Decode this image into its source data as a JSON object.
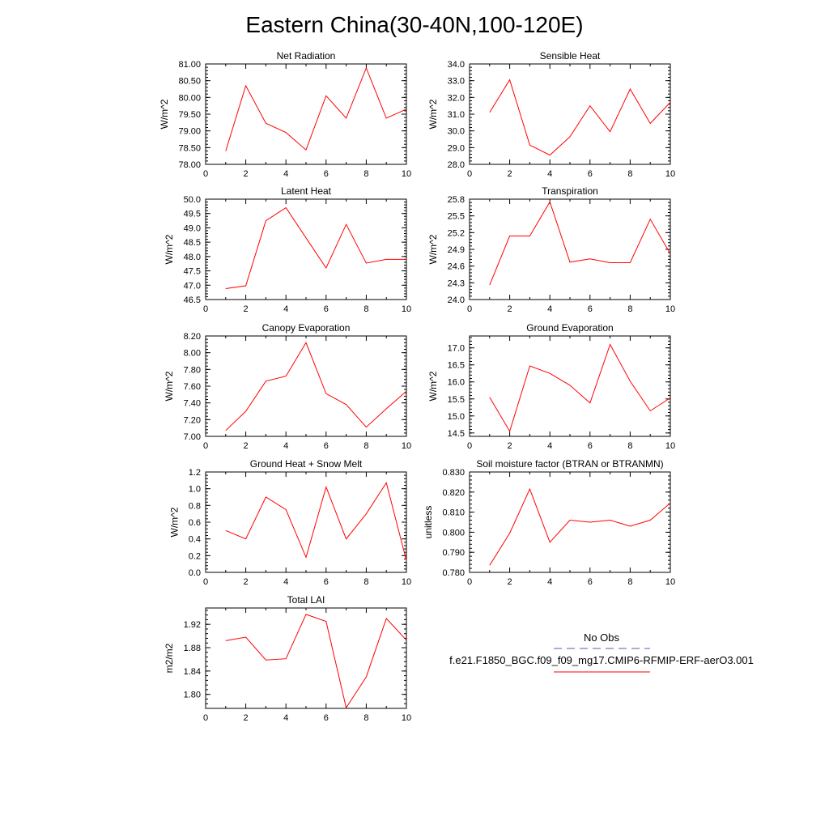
{
  "figure": {
    "title": "Eastern China(30-40N,100-120E)"
  },
  "legend": {
    "obs_label": "No Obs",
    "obs_color": "#5a5aa8",
    "model_label": "f.e21.F1850_BGC.f09_f09_mg17.CMIP6-RFMIP-ERF-aerO3.001",
    "model_color": "#ff0000"
  },
  "chart_data": [
    {
      "type": "line",
      "title": "Net Radiation",
      "xlabel": "",
      "ylabel": "W/m^2",
      "xlim": [
        0,
        10
      ],
      "ylim": [
        78.0,
        81.0
      ],
      "x_ticks": [
        "0",
        "2",
        "4",
        "6",
        "8",
        "10"
      ],
      "y_ticks": [
        "78.00",
        "78.50",
        "79.00",
        "79.50",
        "80.00",
        "80.50",
        "81.00"
      ],
      "series": [
        {
          "name": "f.e21.F1850_BGC.f09_f09_mg17.CMIP6-RFMIP-ERF-aerO3.001",
          "color": "#ff0000",
          "x": [
            1,
            2,
            3,
            4,
            5,
            6,
            7,
            8,
            9,
            10
          ],
          "values": [
            78.4,
            80.35,
            79.23,
            78.95,
            78.43,
            80.05,
            79.38,
            80.88,
            79.38,
            79.65
          ]
        }
      ]
    },
    {
      "type": "line",
      "title": "Sensible Heat",
      "xlabel": "",
      "ylabel": "W/m^2",
      "xlim": [
        0,
        10
      ],
      "ylim": [
        28.0,
        34.0
      ],
      "x_ticks": [
        "0",
        "2",
        "4",
        "6",
        "8",
        "10"
      ],
      "y_ticks": [
        "28.0",
        "29.0",
        "30.0",
        "31.0",
        "32.0",
        "33.0",
        "34.0"
      ],
      "series": [
        {
          "name": "f.e21.F1850_BGC.f09_f09_mg17.CMIP6-RFMIP-ERF-aerO3.001",
          "color": "#ff0000",
          "x": [
            1,
            2,
            3,
            4,
            5,
            6,
            7,
            8,
            9,
            10
          ],
          "values": [
            31.1,
            33.05,
            29.15,
            28.55,
            29.65,
            31.5,
            29.95,
            32.5,
            30.45,
            31.7
          ]
        }
      ]
    },
    {
      "type": "line",
      "title": "Latent Heat",
      "xlabel": "",
      "ylabel": "W/m^2",
      "xlim": [
        0,
        10
      ],
      "ylim": [
        46.5,
        50.0
      ],
      "x_ticks": [
        "0",
        "2",
        "4",
        "6",
        "8",
        "10"
      ],
      "y_ticks": [
        "46.5",
        "47.0",
        "47.5",
        "48.0",
        "48.5",
        "49.0",
        "49.5",
        "50.0"
      ],
      "series": [
        {
          "name": "f.e21.F1850_BGC.f09_f09_mg17.CMIP6-RFMIP-ERF-aerO3.001",
          "color": "#ff0000",
          "x": [
            1,
            2,
            3,
            4,
            5,
            6,
            7,
            8,
            9,
            10
          ],
          "values": [
            46.88,
            46.98,
            49.25,
            49.7,
            48.65,
            47.6,
            49.12,
            47.77,
            47.9,
            47.9
          ]
        }
      ]
    },
    {
      "type": "line",
      "title": "Transpiration",
      "xlabel": "",
      "ylabel": "W/m^2",
      "xlim": [
        0,
        10
      ],
      "ylim": [
        24.0,
        25.8
      ],
      "x_ticks": [
        "0",
        "2",
        "4",
        "6",
        "8",
        "10"
      ],
      "y_ticks": [
        "24.0",
        "24.3",
        "24.6",
        "24.9",
        "25.2",
        "25.5",
        "25.8"
      ],
      "series": [
        {
          "name": "f.e21.F1850_BGC.f09_f09_mg17.CMIP6-RFMIP-ERF-aerO3.001",
          "color": "#ff0000",
          "x": [
            1,
            2,
            3,
            4,
            5,
            6,
            7,
            8,
            9,
            10
          ],
          "values": [
            24.26,
            25.14,
            25.14,
            25.75,
            24.67,
            24.73,
            24.66,
            24.66,
            25.44,
            24.82
          ]
        }
      ]
    },
    {
      "type": "line",
      "title": "Canopy Evaporation",
      "xlabel": "",
      "ylabel": "W/m^2",
      "xlim": [
        0,
        10
      ],
      "ylim": [
        7.0,
        8.2
      ],
      "x_ticks": [
        "0",
        "2",
        "4",
        "6",
        "8",
        "10"
      ],
      "y_ticks": [
        "7.00",
        "7.20",
        "7.40",
        "7.60",
        "7.80",
        "8.00",
        "8.20"
      ],
      "series": [
        {
          "name": "f.e21.F1850_BGC.f09_f09_mg17.CMIP6-RFMIP-ERF-aerO3.001",
          "color": "#ff0000",
          "x": [
            1,
            2,
            3,
            4,
            5,
            6,
            7,
            8,
            9,
            10
          ],
          "values": [
            7.07,
            7.3,
            7.66,
            7.72,
            8.12,
            7.51,
            7.38,
            7.11,
            7.33,
            7.54
          ]
        }
      ]
    },
    {
      "type": "line",
      "title": "Ground Evaporation",
      "xlabel": "",
      "ylabel": "W/m^2",
      "xlim": [
        0,
        10
      ],
      "ylim": [
        14.4,
        17.35
      ],
      "x_ticks": [
        "0",
        "2",
        "4",
        "6",
        "8",
        "10"
      ],
      "y_ticks": [
        "14.5",
        "15.0",
        "15.5",
        "16.0",
        "16.5",
        "17.0"
      ],
      "series": [
        {
          "name": "f.e21.F1850_BGC.f09_f09_mg17.CMIP6-RFMIP-ERF-aerO3.001",
          "color": "#ff0000",
          "x": [
            1,
            2,
            3,
            4,
            5,
            6,
            7,
            8,
            9,
            10
          ],
          "values": [
            15.55,
            14.55,
            16.47,
            16.25,
            15.9,
            15.38,
            17.1,
            16.02,
            15.15,
            15.53
          ]
        }
      ]
    },
    {
      "type": "line",
      "title": "Ground Heat + Snow Melt",
      "xlabel": "",
      "ylabel": "W/m^2",
      "xlim": [
        0,
        10
      ],
      "ylim": [
        0.0,
        1.2
      ],
      "x_ticks": [
        "0",
        "2",
        "4",
        "6",
        "8",
        "10"
      ],
      "y_ticks": [
        "0.0",
        "0.2",
        "0.4",
        "0.6",
        "0.8",
        "1.0",
        "1.2"
      ],
      "series": [
        {
          "name": "f.e21.F1850_BGC.f09_f09_mg17.CMIP6-RFMIP-ERF-aerO3.001",
          "color": "#ff0000",
          "x": [
            1,
            2,
            3,
            4,
            5,
            6,
            7,
            8,
            9,
            10
          ],
          "values": [
            0.5,
            0.4,
            0.9,
            0.75,
            0.18,
            1.02,
            0.4,
            0.7,
            1.07,
            0.14
          ]
        }
      ]
    },
    {
      "type": "line",
      "title": "Soil moisture factor (BTRAN or BTRANMN)",
      "xlabel": "",
      "ylabel": "unitless",
      "xlim": [
        0,
        10
      ],
      "ylim": [
        0.78,
        0.83
      ],
      "x_ticks": [
        "0",
        "2",
        "4",
        "6",
        "8",
        "10"
      ],
      "y_ticks": [
        "0.780",
        "0.790",
        "0.800",
        "0.810",
        "0.820",
        "0.830"
      ],
      "series": [
        {
          "name": "f.e21.F1850_BGC.f09_f09_mg17.CMIP6-RFMIP-ERF-aerO3.001",
          "color": "#ff0000",
          "x": [
            1,
            2,
            3,
            4,
            5,
            6,
            7,
            8,
            9,
            10
          ],
          "values": [
            0.7835,
            0.7995,
            0.8215,
            0.795,
            0.806,
            0.805,
            0.806,
            0.803,
            0.806,
            0.8145
          ]
        }
      ]
    },
    {
      "type": "line",
      "title": "Total LAI",
      "xlabel": "",
      "ylabel": "m2/m2",
      "xlim": [
        0,
        10
      ],
      "ylim": [
        1.776,
        1.948
      ],
      "x_ticks": [
        "0",
        "2",
        "4",
        "6",
        "8",
        "10"
      ],
      "y_ticks": [
        "1.80",
        "1.84",
        "1.88",
        "1.92"
      ],
      "series": [
        {
          "name": "f.e21.F1850_BGC.f09_f09_mg17.CMIP6-RFMIP-ERF-aerO3.001",
          "color": "#ff0000",
          "x": [
            1,
            2,
            3,
            4,
            5,
            6,
            7,
            8,
            9,
            10
          ],
          "values": [
            1.892,
            1.898,
            1.859,
            1.861,
            1.937,
            1.925,
            1.777,
            1.83,
            1.93,
            1.893
          ]
        }
      ]
    }
  ]
}
